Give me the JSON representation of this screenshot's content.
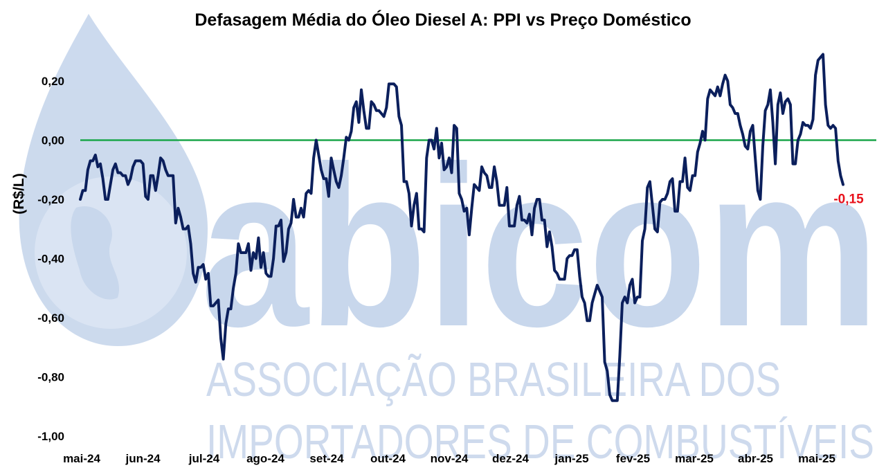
{
  "colors": {
    "series": "#0b1f5c",
    "zero_line": "#1aa64a",
    "last_value": "#e8101a",
    "watermark": "#c3d3ea"
  },
  "watermark": {
    "logo": "abicom",
    "line1": "ASSOCIAÇÃO BRASILEIRA DOS",
    "line2": "IMPORTADORES DE COMBUSTÍVEIS"
  },
  "chart_data": {
    "type": "line",
    "title": "Defasagem Média do Óleo Diesel A: PPI vs Preço Doméstico",
    "ylabel": "(R$/L)",
    "xlabel": "",
    "ylim": [
      -1.0,
      0.3
    ],
    "yticks": [
      0.2,
      0.0,
      -0.2,
      -0.4,
      -0.6,
      -0.8,
      -1.0
    ],
    "ytick_labels": [
      "0,20",
      "0,00",
      "-0,20",
      "-0,40",
      "-0,60",
      "-0,80",
      "-1,00"
    ],
    "x_labels": [
      "mai-24",
      "jun-24",
      "jul-24",
      "ago-24",
      "set-24",
      "out-24",
      "nov-24",
      "dez-24",
      "jan-25",
      "fev-25",
      "mar-25",
      "abr-25",
      "mai-25"
    ],
    "last_value_label": "-0,15",
    "reference_line": 0.0,
    "grid": false,
    "legend": "none",
    "series": [
      {
        "values": [
          -0.2,
          -0.17,
          -0.17,
          -0.1,
          -0.07,
          -0.07,
          -0.05,
          -0.09,
          -0.08,
          -0.13,
          -0.2,
          -0.2,
          -0.15,
          -0.1,
          -0.08,
          -0.11,
          -0.11,
          -0.12,
          -0.12,
          -0.15,
          -0.13,
          -0.09,
          -0.07,
          -0.07,
          -0.07,
          -0.08,
          -0.19,
          -0.2,
          -0.12,
          -0.12,
          -0.17,
          -0.12,
          -0.06,
          -0.07,
          -0.1,
          -0.12,
          -0.12,
          -0.12,
          -0.28,
          -0.23,
          -0.26,
          -0.3,
          -0.3,
          -0.29,
          -0.35,
          -0.45,
          -0.48,
          -0.43,
          -0.43,
          -0.42,
          -0.47,
          -0.45,
          -0.56,
          -0.56,
          -0.55,
          -0.54,
          -0.67,
          -0.74,
          -0.62,
          -0.57,
          -0.57,
          -0.5,
          -0.45,
          -0.35,
          -0.38,
          -0.38,
          -0.38,
          -0.35,
          -0.44,
          -0.38,
          -0.4,
          -0.33,
          -0.43,
          -0.38,
          -0.45,
          -0.46,
          -0.46,
          -0.4,
          -0.29,
          -0.29,
          -0.27,
          -0.41,
          -0.38,
          -0.3,
          -0.28,
          -0.2,
          -0.26,
          -0.26,
          -0.23,
          -0.26,
          -0.18,
          -0.17,
          -0.18,
          -0.06,
          0.0,
          -0.05,
          -0.1,
          -0.13,
          -0.13,
          -0.19,
          -0.06,
          -0.1,
          -0.14,
          -0.16,
          -0.12,
          -0.06,
          0.01,
          0.0,
          0.03,
          0.11,
          0.13,
          0.06,
          0.17,
          0.1,
          0.04,
          0.04,
          0.13,
          0.12,
          0.1,
          0.1,
          0.09,
          0.08,
          0.11,
          0.19,
          0.19,
          0.19,
          0.18,
          0.08,
          0.05,
          -0.14,
          -0.14,
          -0.18,
          -0.29,
          -0.22,
          -0.18,
          -0.3,
          -0.3,
          -0.31,
          -0.06,
          0.0,
          0.0,
          -0.03,
          0.04,
          -0.06,
          -0.01,
          -0.1,
          -0.09,
          -0.06,
          -0.11,
          0.05,
          0.04,
          -0.18,
          -0.2,
          -0.24,
          -0.23,
          -0.32,
          -0.23,
          -0.15,
          -0.16,
          -0.17,
          -0.09,
          -0.11,
          -0.12,
          -0.16,
          -0.16,
          -0.09,
          -0.14,
          -0.22,
          -0.22,
          -0.22,
          -0.16,
          -0.29,
          -0.29,
          -0.29,
          -0.22,
          -0.19,
          -0.27,
          -0.27,
          -0.28,
          -0.25,
          -0.32,
          -0.23,
          -0.2,
          -0.2,
          -0.27,
          -0.27,
          -0.36,
          -0.31,
          -0.36,
          -0.44,
          -0.45,
          -0.47,
          -0.47,
          -0.47,
          -0.4,
          -0.39,
          -0.39,
          -0.37,
          -0.37,
          -0.46,
          -0.53,
          -0.55,
          -0.61,
          -0.61,
          -0.55,
          -0.52,
          -0.49,
          -0.51,
          -0.53,
          -0.75,
          -0.78,
          -0.86,
          -0.88,
          -0.88,
          -0.88,
          -0.73,
          -0.55,
          -0.53,
          -0.55,
          -0.49,
          -0.47,
          -0.55,
          -0.53,
          -0.53,
          -0.34,
          -0.3,
          -0.16,
          -0.14,
          -0.22,
          -0.3,
          -0.31,
          -0.21,
          -0.2,
          -0.2,
          -0.18,
          -0.14,
          -0.13,
          -0.24,
          -0.24,
          -0.14,
          -0.14,
          -0.06,
          -0.16,
          -0.17,
          -0.12,
          -0.12,
          -0.04,
          -0.01,
          0.03,
          0.0,
          0.14,
          0.17,
          0.16,
          0.15,
          0.18,
          0.15,
          0.19,
          0.22,
          0.2,
          0.12,
          0.11,
          0.09,
          0.09,
          0.05,
          0.02,
          -0.02,
          -0.03,
          0.03,
          0.05,
          -0.06,
          -0.17,
          -0.2,
          -0.02,
          0.1,
          0.12,
          0.17,
          0.06,
          -0.08,
          0.12,
          0.16,
          0.09,
          0.13,
          0.14,
          0.12,
          -0.08,
          -0.08,
          0.0,
          0.02,
          0.06,
          0.05,
          0.05,
          0.04,
          0.07,
          0.22,
          0.27,
          0.28,
          0.29,
          0.12,
          0.05,
          0.04,
          0.05,
          0.04,
          -0.07,
          -0.12,
          -0.15
        ]
      }
    ]
  }
}
